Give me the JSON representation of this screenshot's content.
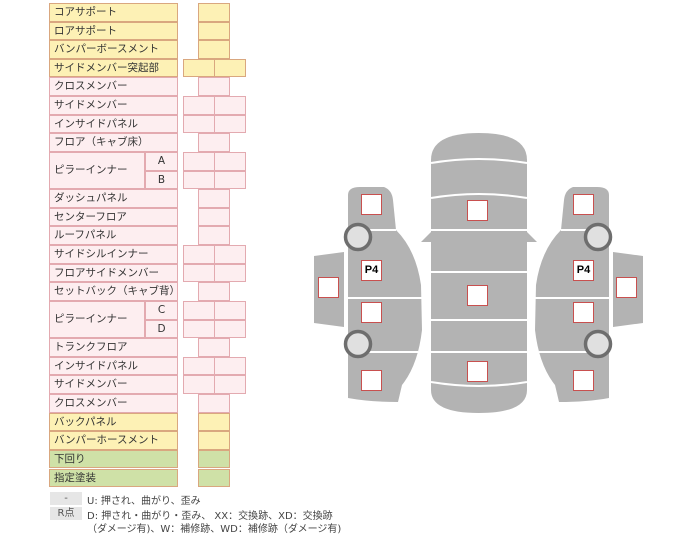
{
  "rows": [
    {
      "label": "コアサポート",
      "type": "single",
      "color": "yellow"
    },
    {
      "label": "ロアサポート",
      "type": "single",
      "color": "yellow"
    },
    {
      "label": "バンパーボースメント",
      "type": "single",
      "color": "yellow"
    },
    {
      "label": "サイドメンバー突起部",
      "type": "double",
      "color": "yellow"
    },
    {
      "label": "クロスメンバー",
      "type": "single",
      "color": "pink"
    },
    {
      "label": "サイドメンバー",
      "type": "double",
      "color": "pink"
    },
    {
      "label": "インサイドパネル",
      "type": "double",
      "color": "pink"
    },
    {
      "label": "フロア（キャブ床）",
      "type": "single",
      "color": "pink"
    },
    {
      "label": "ピラーインナー",
      "sub": "A",
      "type": "double",
      "color": "pink"
    },
    {
      "label": "",
      "sub": "B",
      "type": "double",
      "color": "pink"
    },
    {
      "label": "ダッシュパネル",
      "type": "single",
      "color": "pink"
    },
    {
      "label": "センターフロア",
      "type": "single",
      "color": "pink"
    },
    {
      "label": "ルーフパネル",
      "type": "single",
      "color": "pink"
    },
    {
      "label": "サイドシルインナー",
      "type": "double",
      "color": "pink"
    },
    {
      "label": "フロアサイドメンバー",
      "type": "double",
      "color": "pink"
    },
    {
      "label": "セットバック（キャブ背）",
      "type": "single",
      "color": "pink"
    },
    {
      "label": "ピラーインナー",
      "sub": "C",
      "type": "double",
      "color": "pink"
    },
    {
      "label": "",
      "sub": "D",
      "type": "double",
      "color": "pink"
    },
    {
      "label": "トランクフロア",
      "type": "single",
      "color": "pink"
    },
    {
      "label": "インサイドパネル",
      "type": "double",
      "color": "pink"
    },
    {
      "label": "サイドメンバー",
      "type": "double",
      "color": "pink"
    },
    {
      "label": "クロスメンバー",
      "type": "single",
      "color": "pink"
    },
    {
      "label": "バックパネル",
      "type": "single",
      "color": "yellow"
    },
    {
      "label": "バンパーホースメント",
      "type": "single",
      "color": "yellow"
    },
    {
      "label": "下回り",
      "type": "single",
      "color": "green"
    },
    {
      "label": "指定塗装",
      "type": "single",
      "color": "green"
    }
  ],
  "diagram": {
    "left_label": "P4",
    "right_label": "P4"
  },
  "legend": [
    {
      "key": "-",
      "text": "U: 押され、曲がり、歪み"
    },
    {
      "key": "R点",
      "text": "D: 押され・曲がり・歪み、 XX：交換跡、XD：交換跡",
      "text2": "（ダメージ有)、W：補修跡、WD：補修跡（ダメージ有)"
    }
  ],
  "colors": {
    "yellow": "#fdf1b5",
    "pink": "#fdeef0",
    "green": "#cfe1a7",
    "body": "#b3b3b3",
    "mark": "#c8504f"
  }
}
